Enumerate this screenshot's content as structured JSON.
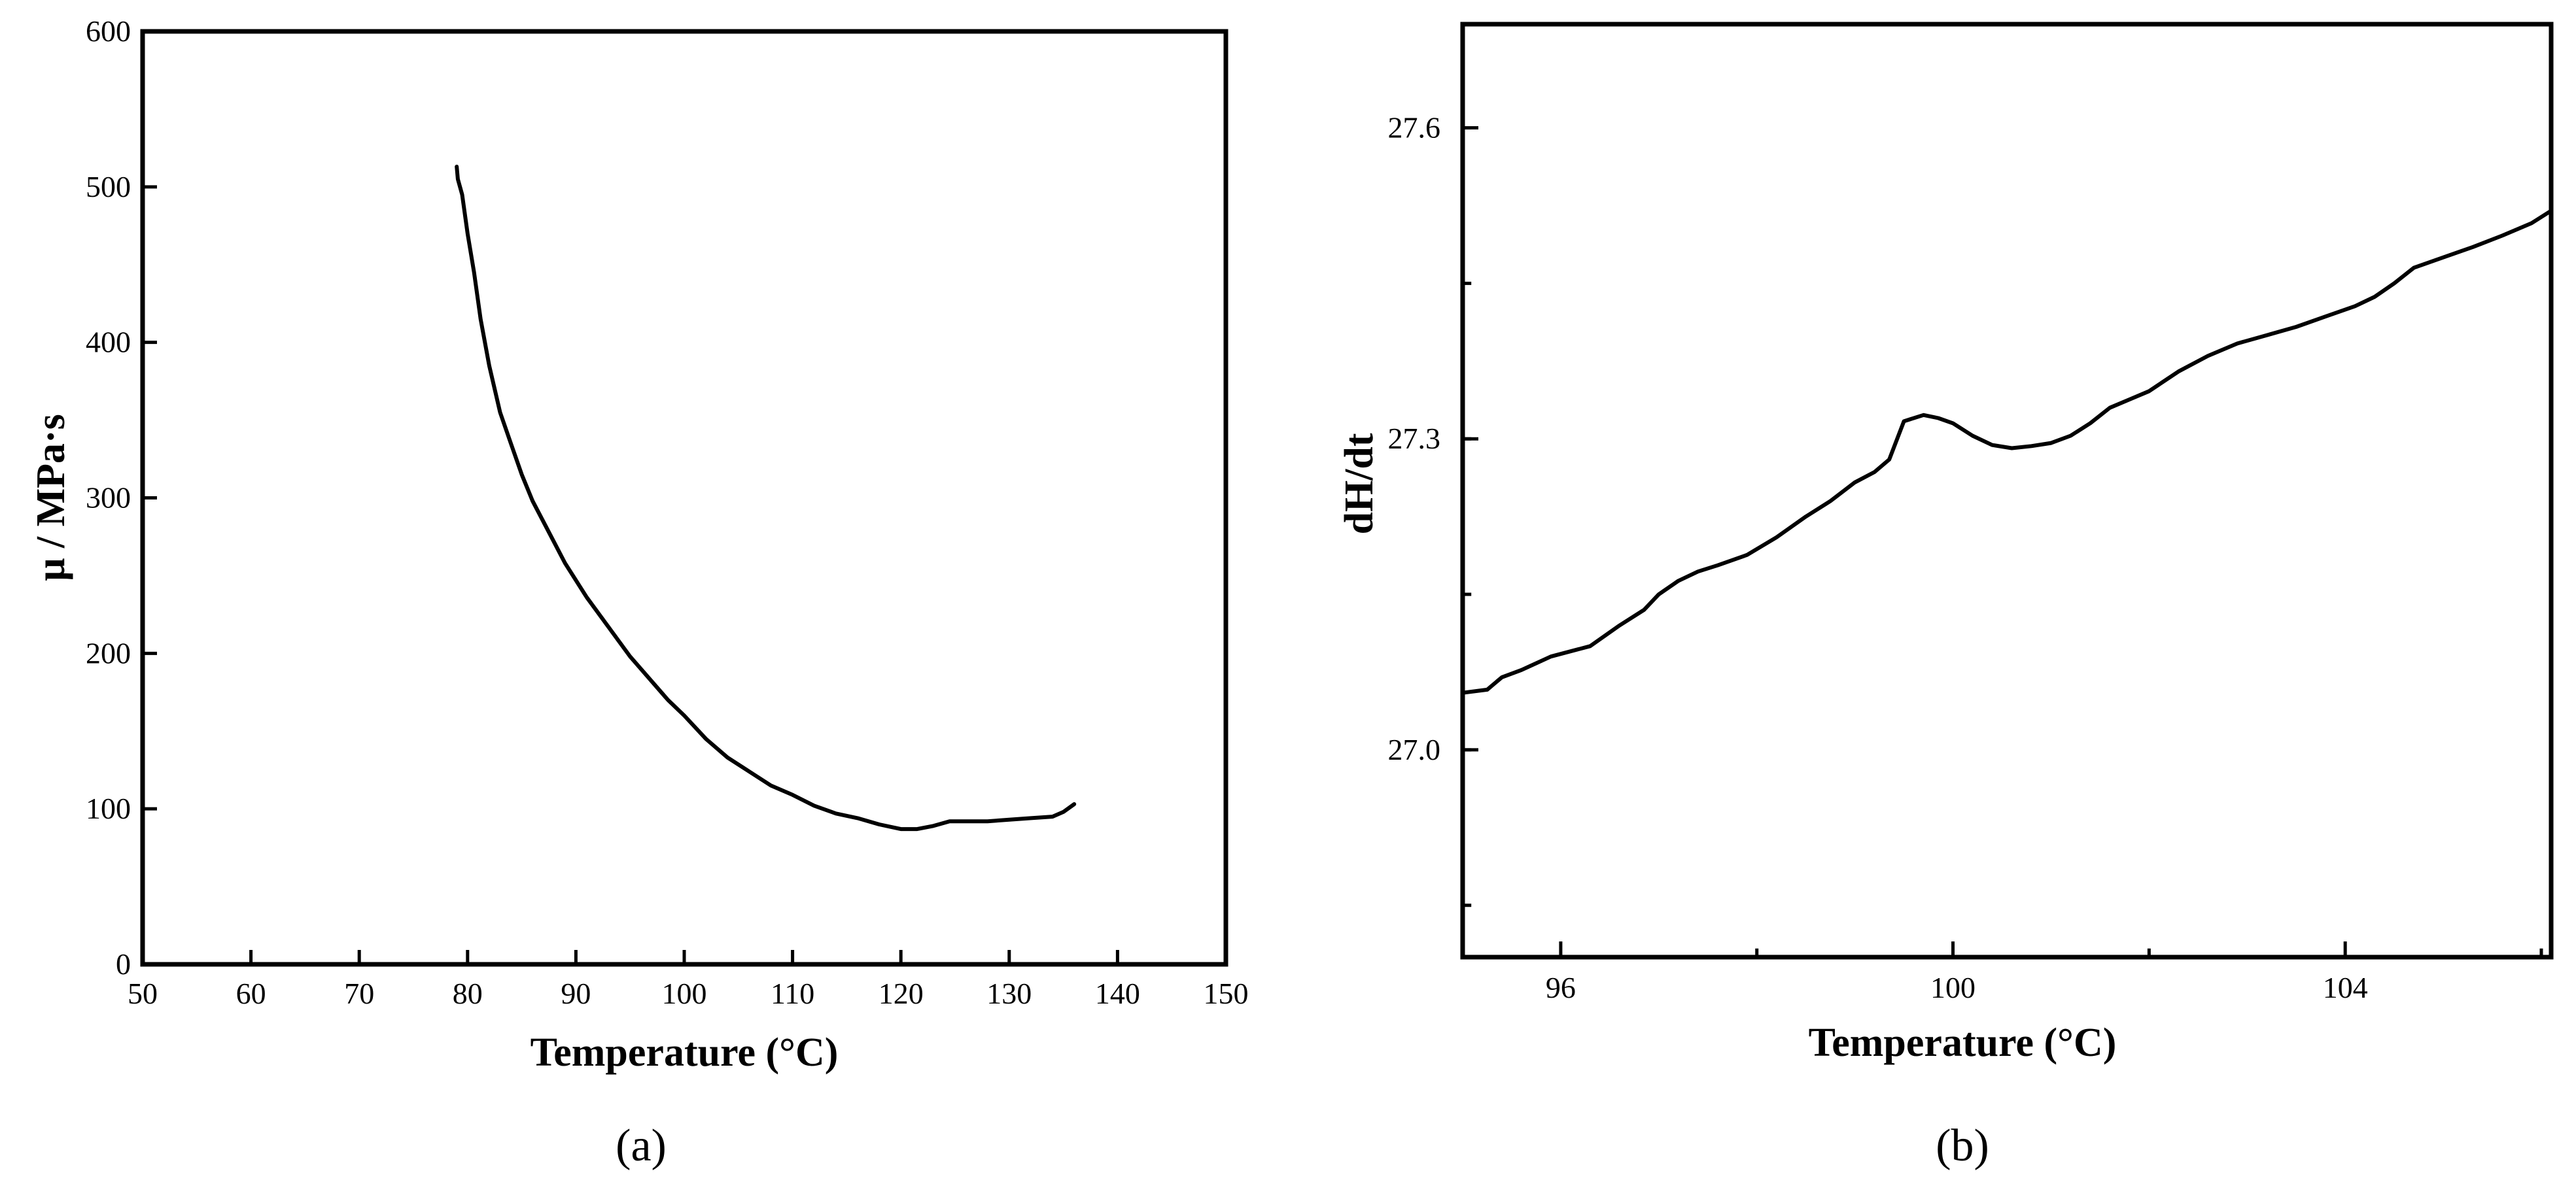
{
  "chart_data": [
    {
      "type": "line",
      "panel_label": "(a)",
      "xlabel": "Temperature (°C)",
      "ylabel": "μ / MPa·s",
      "xlim": [
        50,
        150
      ],
      "ylim": [
        0,
        600
      ],
      "xticks": [
        50,
        60,
        70,
        80,
        90,
        100,
        110,
        120,
        130,
        140,
        150
      ],
      "yticks": [
        0,
        100,
        200,
        300,
        400,
        500,
        600
      ],
      "grid": false,
      "series": [
        {
          "x": [
            79,
            79.1,
            79.5,
            80,
            80.6,
            81.2,
            82,
            83,
            84,
            85,
            86,
            87.5,
            89,
            91,
            93,
            95,
            97,
            98.5,
            100,
            102,
            104,
            106,
            108,
            110,
            112,
            114,
            116,
            118,
            120,
            121.5,
            123,
            124.5,
            126,
            128,
            130,
            132,
            134,
            135,
            136
          ],
          "y": [
            513,
            505,
            495,
            470,
            445,
            415,
            385,
            355,
            335,
            315,
            298,
            278,
            258,
            236,
            217,
            198,
            182,
            170,
            160,
            145,
            133,
            124,
            115,
            109,
            102,
            97,
            94,
            90,
            87,
            87,
            89,
            92,
            92,
            92,
            93,
            94,
            95,
            98,
            103
          ]
        }
      ]
    },
    {
      "type": "line",
      "panel_label": "(b)",
      "xlabel": "Temperature (°C)",
      "ylabel": "dH/dt",
      "xlim": [
        95,
        106.1
      ],
      "ylim": [
        26.8,
        27.7
      ],
      "xticks": [
        96,
        100,
        104
      ],
      "yticks": [
        27.0,
        27.3,
        27.6
      ],
      "ytick_labels": [
        "27.0",
        "27.3",
        "27.6"
      ],
      "grid": false,
      "series": [
        {
          "x": [
            95,
            95.25,
            95.4,
            95.6,
            95.9,
            96.3,
            96.6,
            96.85,
            97.0,
            97.2,
            97.4,
            97.6,
            97.9,
            98.2,
            98.5,
            98.75,
            99.0,
            99.2,
            99.35,
            99.5,
            99.7,
            99.85,
            100.0,
            100.2,
            100.4,
            100.6,
            100.8,
            101.0,
            101.2,
            101.4,
            101.6,
            101.8,
            102.0,
            102.3,
            102.6,
            102.9,
            103.2,
            103.5,
            103.8,
            104.1,
            104.3,
            104.5,
            104.7,
            105.0,
            105.3,
            105.6,
            105.9,
            106.1
          ],
          "y": [
            27.055,
            27.058,
            27.07,
            27.077,
            27.09,
            27.1,
            27.12,
            27.135,
            27.15,
            27.163,
            27.172,
            27.178,
            27.188,
            27.205,
            27.225,
            27.24,
            27.258,
            27.268,
            27.28,
            27.317,
            27.323,
            27.32,
            27.315,
            27.303,
            27.294,
            27.291,
            27.293,
            27.296,
            27.303,
            27.315,
            27.33,
            27.338,
            27.346,
            27.365,
            27.38,
            27.392,
            27.4,
            27.408,
            27.418,
            27.428,
            27.437,
            27.45,
            27.465,
            27.475,
            27.485,
            27.496,
            27.508,
            27.52
          ]
        }
      ]
    }
  ]
}
